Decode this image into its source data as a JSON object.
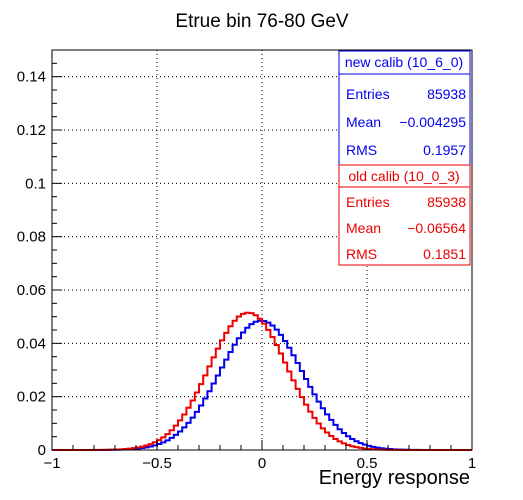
{
  "chart_data": {
    "type": "line",
    "title": "Etrue bin 76-80 GeV",
    "xlabel": "Energy response",
    "ylabel": "",
    "xlim": [
      -1,
      1
    ],
    "ylim": [
      0,
      0.15
    ],
    "grid": true,
    "x_ticks": [
      -1,
      -0.5,
      0,
      0.5,
      1
    ],
    "x_tick_labels": [
      "−1",
      "−0.5",
      "0",
      "0.5",
      "1"
    ],
    "y_ticks": [
      0,
      0.02,
      0.04,
      0.06,
      0.08,
      0.1,
      0.12,
      0.14
    ],
    "y_tick_labels": [
      "0",
      "0.02",
      "0.04",
      "0.06",
      "0.08",
      "0.1",
      "0.12",
      "0.14"
    ],
    "bin_width": 0.02,
    "series": [
      {
        "name": "new calib (10_6_0)",
        "color": "#0000ee",
        "entries_label": "Entries",
        "entries": "85938",
        "mean_label": "Mean",
        "mean": "−0.004295",
        "rms_label": "RMS",
        "rms": "0.1957",
        "mean_val": -0.004295,
        "rms_val": 0.1957,
        "peak": 0.0485
      },
      {
        "name": "old calib (10_0_3)",
        "color": "#ee0000",
        "entries_label": "Entries",
        "entries": "85938",
        "mean_label": "Mean",
        "mean": "−0.06564",
        "rms_label": "RMS",
        "rms": "0.1851",
        "mean_val": -0.06564,
        "rms_val": 0.1851,
        "peak": 0.0515
      }
    ]
  }
}
